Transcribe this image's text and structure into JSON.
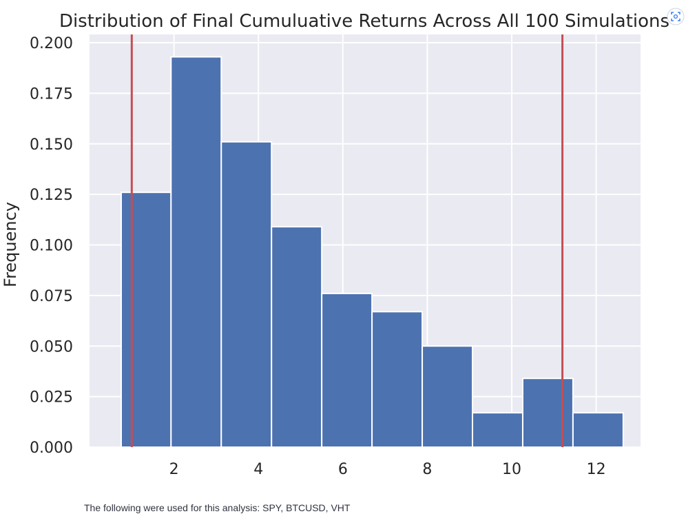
{
  "chart_data": {
    "type": "bar",
    "title": "Distribution of Final Cumuluative Returns Across All 100 Simulations",
    "xlabel": "",
    "ylabel": "Frequency",
    "bin_edges": [
      0.75,
      1.93,
      3.12,
      4.31,
      5.5,
      6.69,
      7.88,
      9.07,
      10.26,
      11.45,
      12.64
    ],
    "values": [
      0.126,
      0.193,
      0.151,
      0.109,
      0.076,
      0.067,
      0.05,
      0.017,
      0.034,
      0.017
    ],
    "vlines": [
      1.0,
      11.2
    ],
    "xlim": [
      0.0,
      13.05
    ],
    "ylim": [
      0.0,
      0.2
    ],
    "xticks": [
      2,
      4,
      6,
      8,
      10,
      12
    ],
    "yticks": [
      "0.000",
      "0.025",
      "0.050",
      "0.075",
      "0.100",
      "0.125",
      "0.150",
      "0.175",
      "0.200"
    ],
    "grid": true,
    "colors": {
      "bars": "#4c72b0",
      "vlines": "#c44e52",
      "background": "#eaeaf2",
      "grid": "#ffffff"
    }
  },
  "caption": "The following were used for this analysis: SPY, BTCUSD, VHT",
  "fullscreen_icon": "fullscreen-icon"
}
